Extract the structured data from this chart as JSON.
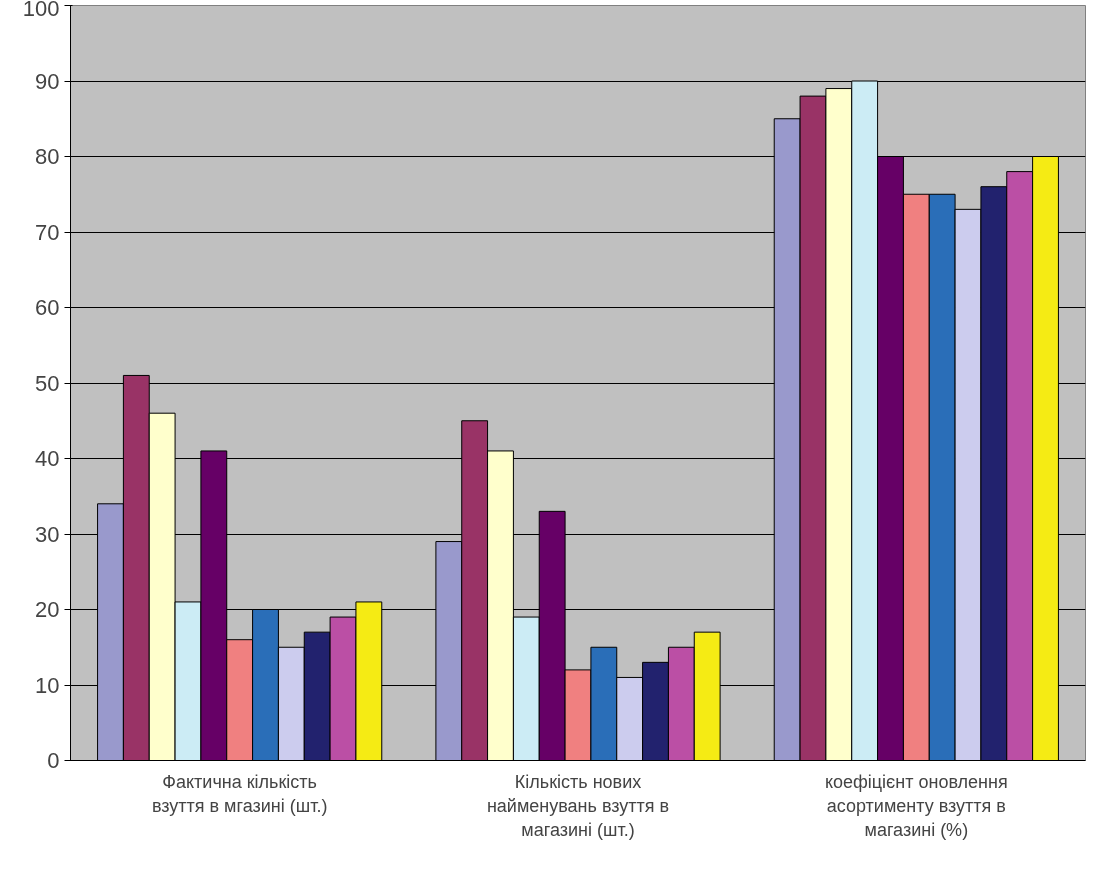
{
  "chart_data": {
    "type": "bar",
    "categories": [
      "Фактична кількість взуття в мгазині (шт.)",
      "Кількість нових найменувань взуття в магазині (шт.)",
      "коефіцієнт оновлення асортименту взуття в магазині (%)"
    ],
    "series": [
      {
        "color": "#9999cc",
        "values": [
          34,
          29,
          85
        ]
      },
      {
        "color": "#993366",
        "values": [
          51,
          45,
          88
        ]
      },
      {
        "color": "#ffffcc",
        "values": [
          46,
          41,
          89
        ]
      },
      {
        "color": "#ccecf5",
        "values": [
          21,
          19,
          90
        ]
      },
      {
        "color": "#660066",
        "values": [
          41,
          33,
          80
        ]
      },
      {
        "color": "#f08080",
        "values": [
          16,
          12,
          75
        ]
      },
      {
        "color": "#2a6eb8",
        "values": [
          20,
          15,
          75
        ]
      },
      {
        "color": "#ccccee",
        "values": [
          15,
          11,
          73
        ]
      },
      {
        "color": "#22226e",
        "values": [
          17,
          13,
          76
        ]
      },
      {
        "color": "#bb4fa5",
        "values": [
          19,
          15,
          78
        ]
      },
      {
        "color": "#f5eb14",
        "values": [
          21,
          17,
          80
        ]
      }
    ],
    "ylim": [
      0,
      100
    ],
    "yticks": [
      0,
      10,
      20,
      30,
      40,
      50,
      60,
      70,
      80,
      90,
      100
    ],
    "grid": "y"
  }
}
